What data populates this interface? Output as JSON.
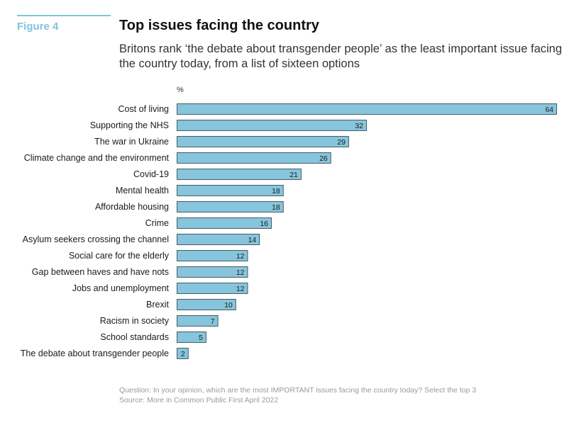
{
  "figure_label": "Figure 4",
  "colors": {
    "accent": "#7fc4dc",
    "bar_fill": "#86c5dc",
    "bar_stroke": "#2b3a44"
  },
  "chart_data": {
    "type": "bar",
    "orientation": "horizontal",
    "title": "Top issues facing the country",
    "subtitle": "Britons rank ‘the debate about transgender people’ as the least important issue facing the country today, from a list of sixteen options",
    "unit_label": "%",
    "categories": [
      "Cost of living",
      "Supporting the NHS",
      "The war in Ukraine",
      "Climate change and the environment",
      "Covid-19",
      "Mental health",
      "Affordable housing",
      "Crime",
      "Asylum seekers crossing the channel",
      "Social care for the elderly",
      "Gap between haves and have nots",
      "Jobs and unemployment",
      "Brexit",
      "Racism in society",
      "School standards",
      "The debate about transgender people"
    ],
    "values": [
      64,
      32,
      29,
      26,
      21,
      18,
      18,
      16,
      14,
      12,
      12,
      12,
      10,
      7,
      5,
      2
    ],
    "xlim": [
      0,
      64
    ],
    "grid": false,
    "data_labels": true
  },
  "footnote": {
    "question": "Question: In your opinion, which are the most IMPORTANT issues facing the country today? Select the top 3",
    "source": "Source: More in Common Public First April 2022"
  }
}
